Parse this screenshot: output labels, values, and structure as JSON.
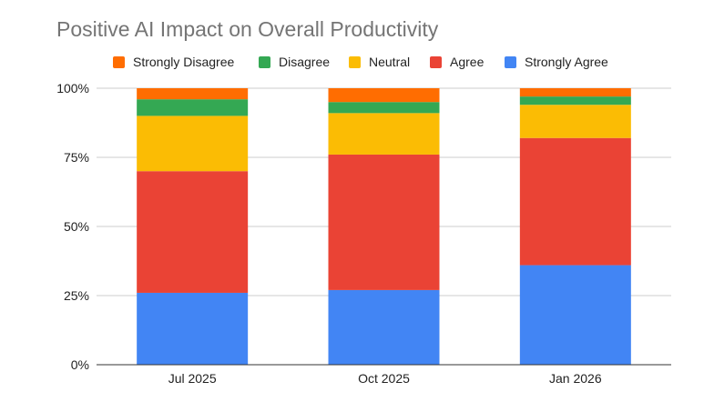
{
  "chart_data": {
    "type": "bar",
    "stacked": true,
    "normalized": true,
    "title": "Positive AI Impact on Overall Productivity",
    "xlabel": "",
    "ylabel": "",
    "categories": [
      "Jul 2025",
      "Oct 2025",
      "Jan 2026"
    ],
    "ylim": [
      0,
      100
    ],
    "yticks": [
      0,
      25,
      50,
      75,
      100
    ],
    "ytick_labels": [
      "0%",
      "25%",
      "50%",
      "75%",
      "100%"
    ],
    "grid": true,
    "legend_position": "top",
    "series": [
      {
        "name": "Strongly Agree",
        "color": "#4285f4",
        "values": [
          26,
          27,
          36
        ]
      },
      {
        "name": "Agree",
        "color": "#ea4335",
        "values": [
          44,
          49,
          46
        ]
      },
      {
        "name": "Neutral",
        "color": "#fbbc04",
        "values": [
          20,
          15,
          12
        ]
      },
      {
        "name": "Disagree",
        "color": "#34a853",
        "values": [
          6,
          4,
          3
        ]
      },
      {
        "name": "Strongly Disagree",
        "color": "#ff6d01",
        "values": [
          4,
          5,
          3
        ]
      }
    ],
    "legend_order": [
      "Strongly Disagree",
      "Disagree",
      "Neutral",
      "Agree",
      "Strongly Agree"
    ]
  }
}
